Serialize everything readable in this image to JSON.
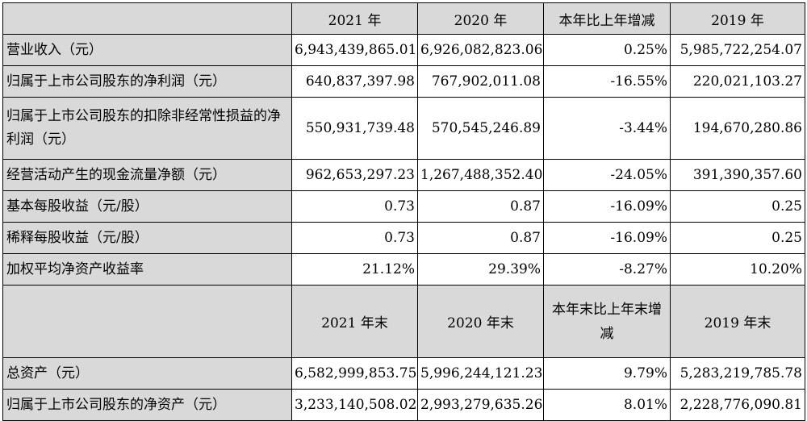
{
  "header1": {
    "blank": "",
    "col1": "2021 年",
    "col2": "2020 年",
    "col3": "本年比上年增减",
    "col4": "2019 年"
  },
  "rows1": [
    {
      "label": "营业收入（元）",
      "v2021": "6,943,439,865.01",
      "v2020": "6,926,082,823.06",
      "chg": "0.25%",
      "v2019": "5,985,722,254.07"
    },
    {
      "label": "归属于上市公司股东的净利润（元）",
      "v2021": "640,837,397.98",
      "v2020": "767,902,011.08",
      "chg": "-16.55%",
      "v2019": "220,021,103.27"
    },
    {
      "label": "归属于上市公司股东的扣除非经常性损益的净利润（元）",
      "v2021": "550,931,739.48",
      "v2020": "570,545,246.89",
      "chg": "-3.44%",
      "v2019": "194,670,280.86"
    },
    {
      "label": "经营活动产生的现金流量净额（元）",
      "v2021": "962,653,297.23",
      "v2020": "1,267,488,352.40",
      "chg": "-24.05%",
      "v2019": "391,390,357.60"
    },
    {
      "label": "基本每股收益（元/股）",
      "v2021": "0.73",
      "v2020": "0.87",
      "chg": "-16.09%",
      "v2019": "0.25"
    },
    {
      "label": "稀释每股收益（元/股）",
      "v2021": "0.73",
      "v2020": "0.87",
      "chg": "-16.09%",
      "v2019": "0.25"
    },
    {
      "label": "加权平均净资产收益率",
      "v2021": "21.12%",
      "v2020": "29.39%",
      "chg": "-8.27%",
      "v2019": "10.20%"
    }
  ],
  "header2": {
    "blank": "",
    "col1": "2021 年末",
    "col2": "2020 年末",
    "col3": "本年末比上年末增减",
    "col4": "2019 年末"
  },
  "rows2": [
    {
      "label": "总资产（元）",
      "v2021": "6,582,999,853.75",
      "v2020": "5,996,244,121.23",
      "chg": "9.79%",
      "v2019": "5,283,219,785.78"
    },
    {
      "label": "归属于上市公司股东的净资产（元）",
      "v2021": "3,233,140,508.02",
      "v2020": "2,993,279,635.26",
      "chg": "8.01%",
      "v2019": "2,228,776,090.81"
    }
  ]
}
